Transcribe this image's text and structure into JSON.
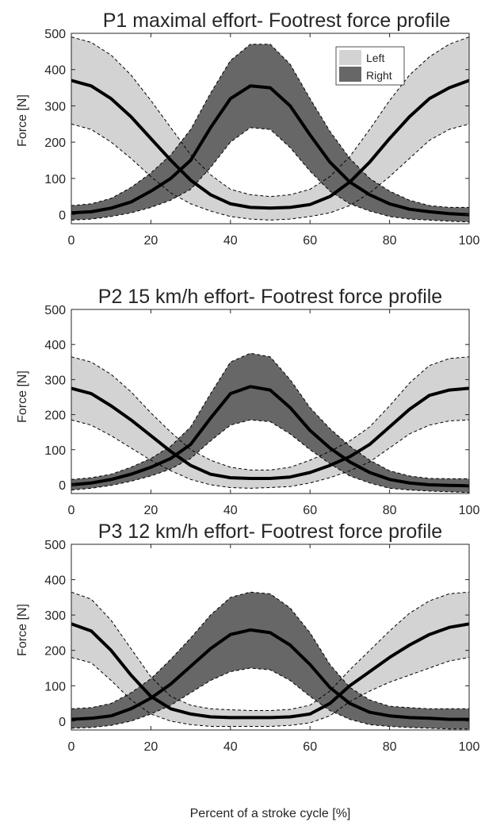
{
  "chart_data": [
    {
      "type": "area",
      "title": "P1 maximal effort- Footrest force profile",
      "ylabel": "Force [N]",
      "xlabel": "",
      "xlim": [
        0,
        100
      ],
      "ylim": [
        -25,
        500
      ],
      "xticks": [
        0,
        20,
        40,
        60,
        80,
        100
      ],
      "yticks": [
        0,
        100,
        200,
        300,
        400,
        500
      ],
      "legend": {
        "placement": "top-right",
        "entries": [
          "Left",
          "Right"
        ]
      },
      "series": [
        {
          "name": "Left",
          "fill": "#d3d3d3",
          "x": [
            0,
            5,
            10,
            15,
            20,
            25,
            30,
            35,
            40,
            45,
            50,
            55,
            60,
            65,
            70,
            75,
            80,
            85,
            90,
            95,
            100
          ],
          "mean": [
            370,
            355,
            320,
            270,
            210,
            150,
            95,
            55,
            30,
            20,
            18,
            20,
            28,
            50,
            90,
            145,
            210,
            270,
            320,
            350,
            370
          ],
          "upper": [
            490,
            475,
            440,
            385,
            315,
            240,
            165,
            110,
            70,
            55,
            50,
            55,
            70,
            105,
            160,
            235,
            315,
            385,
            435,
            470,
            490
          ],
          "lower": [
            250,
            235,
            200,
            155,
            105,
            60,
            30,
            10,
            -5,
            -12,
            -15,
            -12,
            -5,
            5,
            25,
            60,
            105,
            155,
            205,
            235,
            250
          ]
        },
        {
          "name": "Right",
          "fill": "#676767",
          "x": [
            0,
            5,
            10,
            15,
            20,
            25,
            30,
            35,
            40,
            45,
            50,
            55,
            60,
            65,
            70,
            75,
            80,
            85,
            90,
            95,
            100
          ],
          "mean": [
            5,
            8,
            18,
            35,
            65,
            100,
            150,
            240,
            320,
            355,
            350,
            300,
            220,
            145,
            90,
            55,
            30,
            15,
            8,
            3,
            0
          ],
          "upper": [
            25,
            30,
            45,
            75,
            115,
            165,
            235,
            335,
            425,
            470,
            470,
            415,
            320,
            230,
            155,
            100,
            65,
            40,
            25,
            20,
            20
          ],
          "lower": [
            -15,
            -12,
            -5,
            5,
            20,
            40,
            70,
            130,
            200,
            240,
            235,
            185,
            120,
            65,
            30,
            10,
            -5,
            -12,
            -15,
            -18,
            -20
          ]
        }
      ]
    },
    {
      "type": "area",
      "title": "P2 15 km/h effort- Footrest force profile",
      "ylabel": "Force [N]",
      "xlabel": "",
      "xlim": [
        0,
        100
      ],
      "ylim": [
        -25,
        500
      ],
      "xticks": [
        0,
        20,
        40,
        60,
        80,
        100
      ],
      "yticks": [
        0,
        100,
        200,
        300,
        400,
        500
      ],
      "series": [
        {
          "name": "Left",
          "fill": "#d3d3d3",
          "x": [
            0,
            5,
            10,
            15,
            20,
            25,
            30,
            35,
            40,
            45,
            50,
            55,
            60,
            65,
            70,
            75,
            80,
            85,
            90,
            95,
            100
          ],
          "mean": [
            275,
            260,
            225,
            185,
            140,
            95,
            55,
            30,
            20,
            18,
            18,
            22,
            35,
            55,
            80,
            115,
            165,
            215,
            255,
            270,
            275
          ],
          "upper": [
            365,
            350,
            315,
            265,
            205,
            150,
            100,
            70,
            50,
            42,
            42,
            50,
            70,
            95,
            125,
            165,
            225,
            290,
            340,
            360,
            365
          ],
          "lower": [
            185,
            170,
            140,
            105,
            70,
            40,
            15,
            0,
            -8,
            -10,
            -8,
            -5,
            5,
            20,
            40,
            65,
            105,
            145,
            170,
            182,
            185
          ]
        },
        {
          "name": "Right",
          "fill": "#676767",
          "x": [
            0,
            5,
            10,
            15,
            20,
            25,
            30,
            35,
            40,
            45,
            50,
            55,
            60,
            65,
            70,
            75,
            80,
            85,
            90,
            95,
            100
          ],
          "mean": [
            0,
            5,
            15,
            30,
            50,
            75,
            115,
            190,
            260,
            280,
            270,
            220,
            155,
            105,
            65,
            35,
            15,
            5,
            0,
            -2,
            -3
          ],
          "upper": [
            15,
            20,
            30,
            50,
            75,
            110,
            165,
            260,
            350,
            375,
            365,
            300,
            220,
            160,
            110,
            70,
            40,
            25,
            18,
            17,
            17
          ],
          "lower": [
            -15,
            -10,
            -2,
            10,
            25,
            45,
            75,
            125,
            170,
            185,
            180,
            145,
            100,
            60,
            25,
            5,
            -10,
            -15,
            -18,
            -20,
            -22
          ]
        }
      ]
    },
    {
      "type": "area",
      "title": "P3 12 km/h effort- Footrest force profile",
      "ylabel": "Force [N]",
      "xlabel": "Percent of a stroke cycle [%]",
      "xlim": [
        0,
        100
      ],
      "ylim": [
        -25,
        500
      ],
      "xticks": [
        0,
        20,
        40,
        60,
        80,
        100
      ],
      "yticks": [
        0,
        100,
        200,
        300,
        400,
        500
      ],
      "series": [
        {
          "name": "Left",
          "fill": "#d3d3d3",
          "x": [
            0,
            5,
            10,
            15,
            20,
            25,
            30,
            35,
            40,
            45,
            50,
            55,
            60,
            65,
            70,
            75,
            80,
            85,
            90,
            95,
            100
          ],
          "mean": [
            275,
            255,
            200,
            130,
            70,
            35,
            20,
            12,
            10,
            10,
            10,
            12,
            20,
            50,
            100,
            140,
            180,
            215,
            245,
            265,
            275
          ],
          "upper": [
            365,
            345,
            285,
            205,
            125,
            70,
            45,
            35,
            32,
            30,
            30,
            33,
            45,
            85,
            145,
            200,
            255,
            305,
            340,
            360,
            365
          ],
          "lower": [
            180,
            165,
            115,
            60,
            20,
            0,
            -10,
            -15,
            -15,
            -15,
            -15,
            -12,
            -5,
            15,
            55,
            85,
            110,
            130,
            150,
            170,
            180
          ]
        },
        {
          "name": "Right",
          "fill": "#676767",
          "x": [
            0,
            5,
            10,
            15,
            20,
            25,
            30,
            35,
            40,
            45,
            50,
            55,
            60,
            65,
            70,
            75,
            80,
            85,
            90,
            95,
            100
          ],
          "mean": [
            5,
            8,
            15,
            35,
            65,
            105,
            155,
            205,
            245,
            258,
            250,
            215,
            160,
            95,
            50,
            25,
            15,
            10,
            8,
            5,
            5
          ],
          "upper": [
            35,
            38,
            50,
            80,
            120,
            175,
            235,
            300,
            350,
            365,
            360,
            320,
            250,
            160,
            95,
            60,
            42,
            38,
            35,
            35,
            35
          ],
          "lower": [
            -20,
            -18,
            -12,
            0,
            20,
            45,
            80,
            115,
            140,
            150,
            145,
            115,
            70,
            30,
            5,
            -10,
            -15,
            -18,
            -20,
            -22,
            -22
          ]
        }
      ]
    }
  ]
}
